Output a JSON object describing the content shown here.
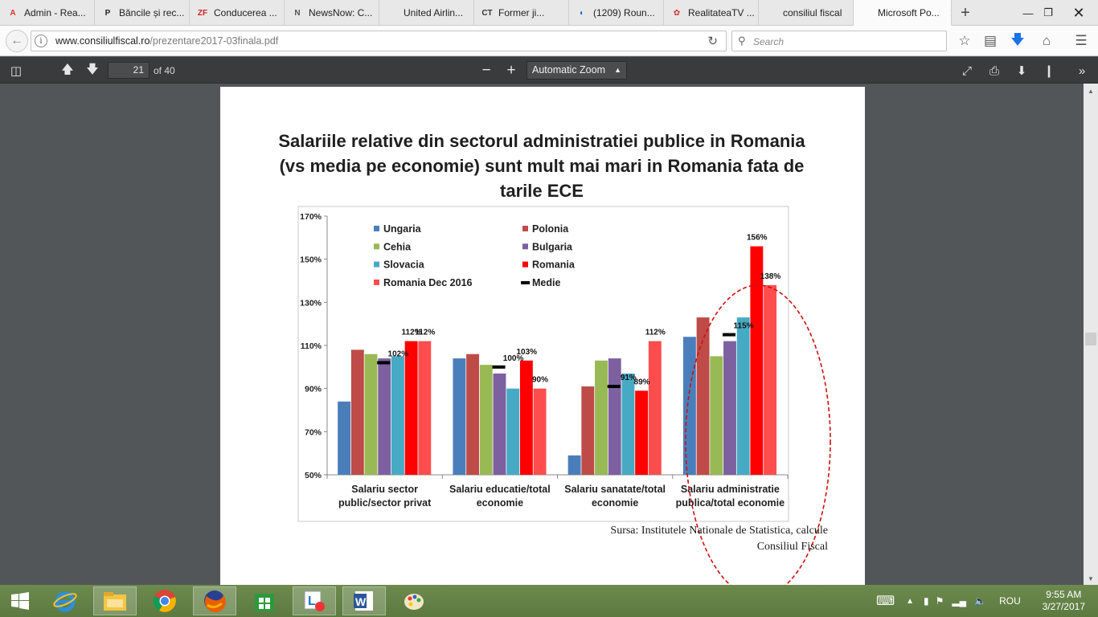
{
  "browser": {
    "tabs": [
      {
        "label": "Admin - Rea...",
        "favicon": "A",
        "color": "#d33"
      },
      {
        "label": "Băncile și rec...",
        "favicon": "P",
        "color": "#222"
      },
      {
        "label": "Conducerea ...",
        "favicon": "ZF",
        "color": "#c22"
      },
      {
        "label": "NewsNow: C...",
        "favicon": "N",
        "color": "#555"
      },
      {
        "label": "United Airlin...",
        "favicon": "",
        "color": "#b11"
      },
      {
        "label": "Former ji...",
        "favicon": "CT",
        "color": "#333"
      },
      {
        "label": "(1209) Roun...",
        "favicon": "◐",
        "color": "#1a6ab3"
      },
      {
        "label": "RealitateaTV ...",
        "favicon": "✿",
        "color": "#c33"
      },
      {
        "label": "consiliul fiscal",
        "favicon": "",
        "color": "#999"
      },
      {
        "label": "Microsoft Po...",
        "favicon": "",
        "color": "#999"
      }
    ],
    "url_host": "www.consiliulfiscal.ro",
    "url_path": "/prezentare2017-03finala.pdf",
    "search_placeholder": "Search"
  },
  "pdf": {
    "page_number": "21",
    "page_count": "of 40",
    "zoom": "Automatic Zoom"
  },
  "slide": {
    "title_line1": "Salariile relative din sectorul administratiei publice in Romania",
    "title_line2": "(vs media pe economie) sunt mult mai mari in Romania fata de",
    "title_line3": "tarile ECE",
    "source_line1": "Sursa: Institutele Nationale de Statistica, calcule",
    "source_line2": "Consiliul Fiscal"
  },
  "chart_data": {
    "type": "bar",
    "ylim": [
      50,
      170
    ],
    "yticks": [
      "170%",
      "150%",
      "130%",
      "110%",
      "90%",
      "70%",
      "50%"
    ],
    "ytick_values": [
      170,
      150,
      130,
      110,
      90,
      70,
      50
    ],
    "categories": [
      "Salariu sector public/sector privat",
      "Salariu educatie/total economie",
      "Salariu sanatate/total economie",
      "Salariu administratie publica/total economie"
    ],
    "category_lines": [
      [
        "Salariu sector",
        "public/sector privat"
      ],
      [
        "Salariu educatie/total",
        "economie"
      ],
      [
        "Salariu sanatate/total",
        "economie"
      ],
      [
        "Salariu administratie",
        "publica/total economie"
      ]
    ],
    "series": [
      {
        "name": "Ungaria",
        "color": "#4a7ebb",
        "values": [
          84,
          104,
          59,
          114
        ]
      },
      {
        "name": "Polonia",
        "color": "#be4b48",
        "values": [
          108,
          106,
          91,
          123
        ]
      },
      {
        "name": "Cehia",
        "color": "#98b954",
        "values": [
          106,
          101,
          103,
          105
        ]
      },
      {
        "name": "Bulgaria",
        "color": "#7d60a0",
        "values": [
          104,
          97,
          104,
          112
        ]
      },
      {
        "name": "Slovacia",
        "color": "#46aac5",
        "values": [
          105,
          90,
          97,
          123
        ]
      },
      {
        "name": "Romania",
        "color": "#ff0000",
        "values": [
          112,
          103,
          89,
          156
        ]
      },
      {
        "name": "Romania Dec 2016",
        "color": "#ff4d4d",
        "values": [
          112,
          90,
          112,
          138
        ]
      }
    ],
    "medie": {
      "name": "Medie",
      "values": [
        102,
        100,
        91,
        115
      ]
    },
    "data_labels": [
      {
        "text": "102%",
        "series": "Medie",
        "category": 0
      },
      {
        "text": "112%",
        "series": "Romania",
        "category": 0
      },
      {
        "text": "112%",
        "series": "Romania Dec 2016",
        "category": 0
      },
      {
        "text": "100%",
        "series": "Medie",
        "category": 1
      },
      {
        "text": "103%",
        "series": "Romania",
        "category": 1
      },
      {
        "text": "90%",
        "series": "Romania Dec 2016",
        "category": 1
      },
      {
        "text": "91%",
        "series": "Medie",
        "category": 2
      },
      {
        "text": "89%",
        "series": "Romania",
        "category": 2
      },
      {
        "text": "112%",
        "series": "Romania Dec 2016",
        "category": 2
      },
      {
        "text": "115%",
        "series": "Medie",
        "category": 3
      },
      {
        "text": "156%",
        "series": "Romania",
        "category": 3
      },
      {
        "text": "138%",
        "series": "Romania Dec 2016",
        "category": 3
      }
    ],
    "highlight": "dashed red ellipse around last category"
  },
  "taskbar": {
    "apps": [
      "internet-explorer",
      "file-explorer",
      "chrome",
      "firefox",
      "store",
      "lync",
      "word",
      "paint"
    ],
    "language": "ROU",
    "time": "9:55 AM",
    "date": "3/27/2017"
  }
}
